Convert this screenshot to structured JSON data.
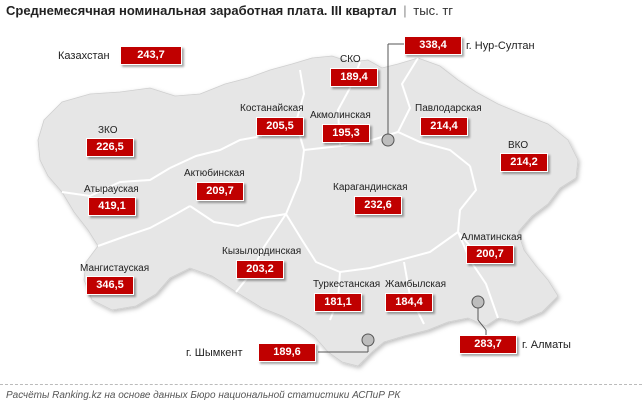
{
  "header": {
    "title": "Среднемесячная номинальная заработная плата. III квартал",
    "separator": "|",
    "unit": "тыс. тг"
  },
  "national": {
    "name": "Казахстан",
    "value": "243,7"
  },
  "regions": [
    {
      "name": "СКО",
      "value": "189,4"
    },
    {
      "name": "Костанайская",
      "value": "205,5"
    },
    {
      "name": "Акмолинская",
      "value": "195,3"
    },
    {
      "name": "Павлодарская",
      "value": "214,4"
    },
    {
      "name": "ЗКО",
      "value": "226,5"
    },
    {
      "name": "ВКО",
      "value": "214,2"
    },
    {
      "name": "Актюбинская",
      "value": "209,7"
    },
    {
      "name": "Атырауская",
      "value": "419,1"
    },
    {
      "name": "Карагандинская",
      "value": "232,6"
    },
    {
      "name": "Мангистауская",
      "value": "346,5"
    },
    {
      "name": "Кызылординская",
      "value": "203,2"
    },
    {
      "name": "Алматинская",
      "value": "200,7"
    },
    {
      "name": "Туркестанская",
      "value": "181,1"
    },
    {
      "name": "Жамбылская",
      "value": "184,4"
    }
  ],
  "cities": [
    {
      "name": "г. Нур-Султан",
      "value": "338,4"
    },
    {
      "name": "г. Шымкент",
      "value": "189,6"
    },
    {
      "name": "г. Алматы",
      "value": "283,7"
    }
  ],
  "footnote": "Расчёты Ranking.kz на основе данных Бюро национальной статистики АСПиР РК",
  "colors": {
    "value_box": "#c00000",
    "land": "#e6e6e6",
    "border": "#ffffff"
  }
}
